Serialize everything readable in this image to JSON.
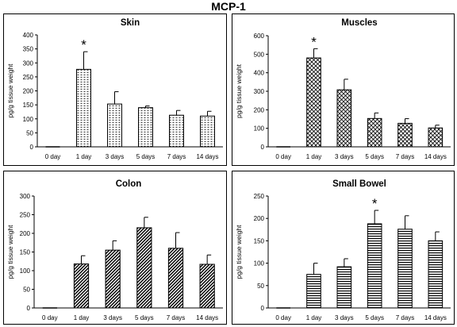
{
  "figure_title": "MCP-1",
  "chart_data": [
    {
      "type": "bar",
      "title": "Skin",
      "ylabel": "pg/g  tissue weight",
      "categories": [
        "0 day",
        "1 day",
        "3 days",
        "5 days",
        "7 days",
        "14 days"
      ],
      "values": [
        0,
        277,
        153,
        140,
        113,
        110
      ],
      "errors": [
        0,
        63,
        44,
        6,
        17,
        17
      ],
      "ylim": [
        0,
        400
      ],
      "yticks": [
        0,
        50,
        100,
        150,
        200,
        250,
        300,
        350,
        400
      ],
      "significant": [
        false,
        true,
        false,
        false,
        false,
        false
      ],
      "significance_marker": "*",
      "pattern": "dots",
      "grid": false,
      "legend": "none"
    },
    {
      "type": "bar",
      "title": "Muscles",
      "ylabel": "pg/g  tissue weight",
      "categories": [
        "0 day",
        "1 day",
        "3 days",
        "5 days",
        "7 days",
        "14 days"
      ],
      "values": [
        0,
        480,
        308,
        153,
        127,
        102
      ],
      "errors": [
        0,
        50,
        57,
        30,
        25,
        15
      ],
      "ylim": [
        0,
        600
      ],
      "yticks": [
        0,
        100,
        200,
        300,
        400,
        500,
        600
      ],
      "significant": [
        false,
        true,
        false,
        false,
        false,
        false
      ],
      "significance_marker": "*",
      "pattern": "crosshatch",
      "grid": false,
      "legend": "none"
    },
    {
      "type": "bar",
      "title": "Colon",
      "ylabel": "pg/g  tissue weight",
      "categories": [
        "0 day",
        "1 day",
        "3 days",
        "5 days",
        "7 days",
        "14 days"
      ],
      "values": [
        0,
        118,
        155,
        215,
        160,
        117
      ],
      "errors": [
        0,
        22,
        25,
        28,
        42,
        25
      ],
      "ylim": [
        0,
        300
      ],
      "yticks": [
        0,
        50,
        100,
        150,
        200,
        250,
        300
      ],
      "significant": [
        false,
        false,
        false,
        false,
        false,
        false
      ],
      "significance_marker": "*",
      "pattern": "diagonal",
      "grid": false,
      "legend": "none"
    },
    {
      "type": "bar",
      "title": "Small Bowel",
      "ylabel": "pg/g  tissue weight",
      "categories": [
        "0 day",
        "1 day",
        "3 days",
        "5 days",
        "7 days",
        "14 days"
      ],
      "values": [
        0,
        75,
        92,
        188,
        176,
        150
      ],
      "errors": [
        0,
        25,
        18,
        30,
        30,
        20
      ],
      "ylim": [
        0,
        250
      ],
      "yticks": [
        0,
        50,
        100,
        150,
        200,
        250
      ],
      "significant": [
        false,
        false,
        false,
        true,
        false,
        false
      ],
      "significance_marker": "*",
      "pattern": "horizontal",
      "grid": false,
      "legend": "none"
    }
  ]
}
